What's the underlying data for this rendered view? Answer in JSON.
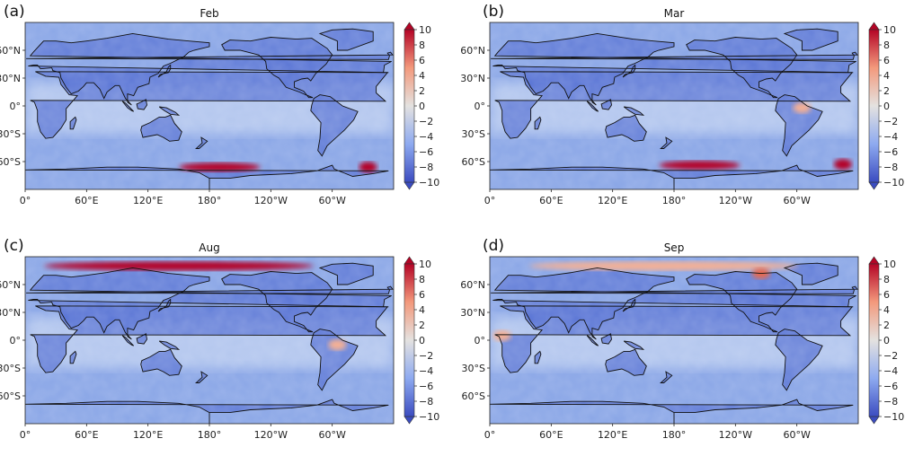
{
  "colors": {
    "deep_blue": "#3b4cc0",
    "mid_blue": "#6f8fe0",
    "light_blue": "#b5c8ee",
    "neutral": "#e4e2e0",
    "light_red": "#f4b095",
    "mid_red": "#e8694d",
    "deep_red": "#b40426",
    "coastline": "#111111"
  },
  "colorbar": {
    "ticks": [
      "10",
      "8",
      "6",
      "4",
      "2",
      "0",
      "−2",
      "−4",
      "−6",
      "−8",
      "−10"
    ],
    "min": -10,
    "max": 10
  },
  "axes": {
    "xticks": [
      "0°",
      "60°E",
      "120°E",
      "180°",
      "120°W",
      "60°W"
    ],
    "yticks": [
      "60°N",
      "30°N",
      "0°",
      "30°S",
      "60°S"
    ]
  },
  "chart_data": {
    "type": "heatmap",
    "projection": "PlateCarree, central longitude 180°",
    "panels": [
      {
        "label": "(a)",
        "title": "Feb",
        "features": [
          {
            "feature": "southern-ocean-warm-band",
            "lon": 190,
            "lat": -66,
            "value": 10
          },
          {
            "feature": "weddell-warm-spot",
            "lon": 335,
            "lat": -66,
            "value": 9
          }
        ]
      },
      {
        "label": "(b)",
        "title": "Mar",
        "features": [
          {
            "feature": "southern-ocean-warm-band",
            "lon": 205,
            "lat": -64,
            "value": 10
          },
          {
            "feature": "weddell-warm-spot",
            "lon": 345,
            "lat": -63,
            "value": 10
          },
          {
            "feature": "amazon-warm-spot",
            "lon": 305,
            "lat": -2,
            "value": 3
          }
        ]
      },
      {
        "label": "(c)",
        "title": "Aug",
        "features": [
          {
            "feature": "arctic-warm-band",
            "lon": 150,
            "lat": 80,
            "value": 8
          },
          {
            "feature": "amazon-warm-spot",
            "lon": 305,
            "lat": -5,
            "value": 4
          }
        ]
      },
      {
        "label": "(d)",
        "title": "Sep",
        "features": [
          {
            "feature": "arctic-warm-band",
            "lon": 170,
            "lat": 80,
            "value": 4
          },
          {
            "feature": "canadian-arctic-spot",
            "lon": 265,
            "lat": 72,
            "value": 6
          },
          {
            "feature": "africa-warm-spot",
            "lon": 12,
            "lat": 5,
            "value": 4
          }
        ]
      }
    ]
  }
}
